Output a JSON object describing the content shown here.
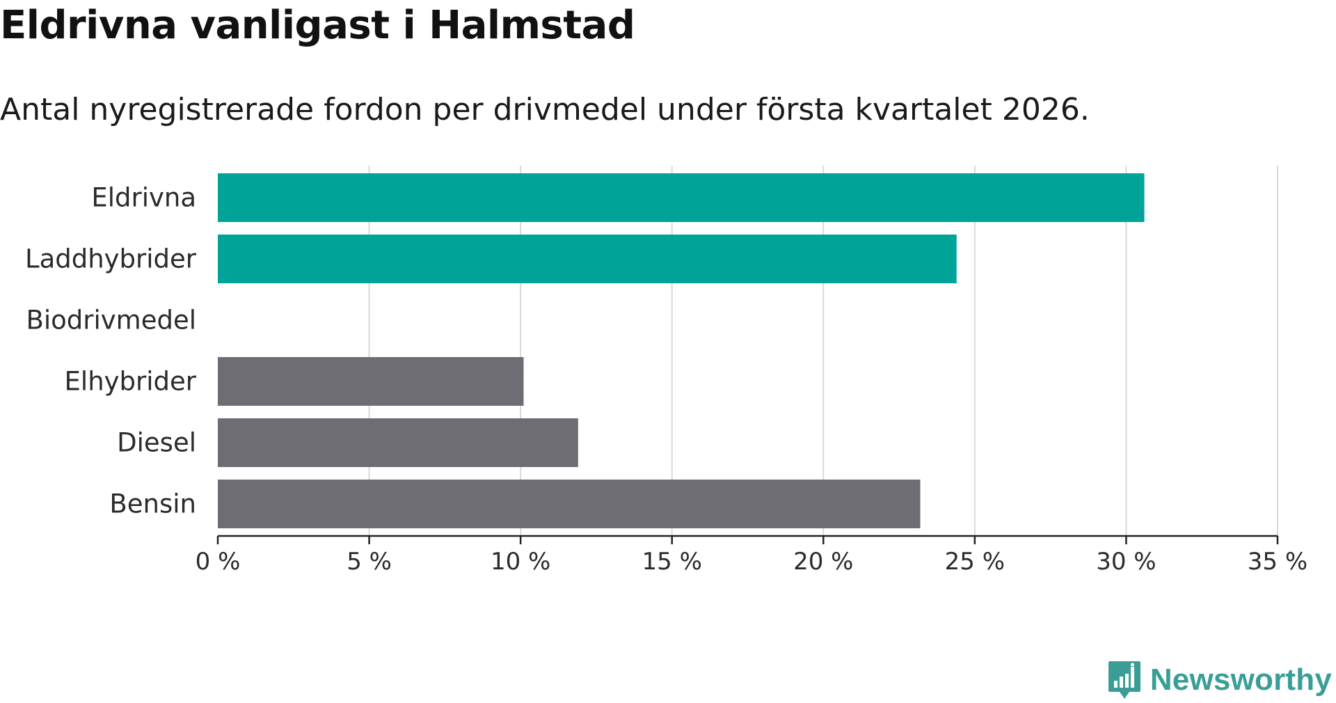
{
  "title": "Eldrivna vanligast i Halmstad",
  "subtitle": "Antal nyregistrerade fordon per drivmedel under första kvartalet 2026.",
  "brand": {
    "name": "Newsworthy",
    "icon": "newsworthy-logo-icon",
    "color": "#3a9e96"
  },
  "colors": {
    "highlight": "#00a398",
    "default": "#6d6d73",
    "grid": "#d9d9d9",
    "axis": "#222222"
  },
  "chart_data": {
    "type": "bar",
    "orientation": "horizontal",
    "title": "Eldrivna vanligast i Halmstad",
    "subtitle": "Antal nyregistrerade fordon per drivmedel under första kvartalet 2026.",
    "categories": [
      "Eldrivna",
      "Laddhybrider",
      "Biodrivmedel",
      "Elhybrider",
      "Diesel",
      "Bensin"
    ],
    "values": [
      30.6,
      24.4,
      0,
      10.1,
      11.9,
      23.2
    ],
    "highlight": [
      true,
      true,
      false,
      false,
      false,
      false
    ],
    "xlim": [
      0,
      35
    ],
    "xticks": [
      0,
      5,
      10,
      15,
      20,
      25,
      30,
      35
    ],
    "xtick_labels": [
      "0 %",
      "5 %",
      "10 %",
      "15 %",
      "20 %",
      "25 %",
      "30 %",
      "35 %"
    ],
    "xlabel": "",
    "ylabel": "",
    "unit": "%",
    "grid": true,
    "legend": "none"
  }
}
